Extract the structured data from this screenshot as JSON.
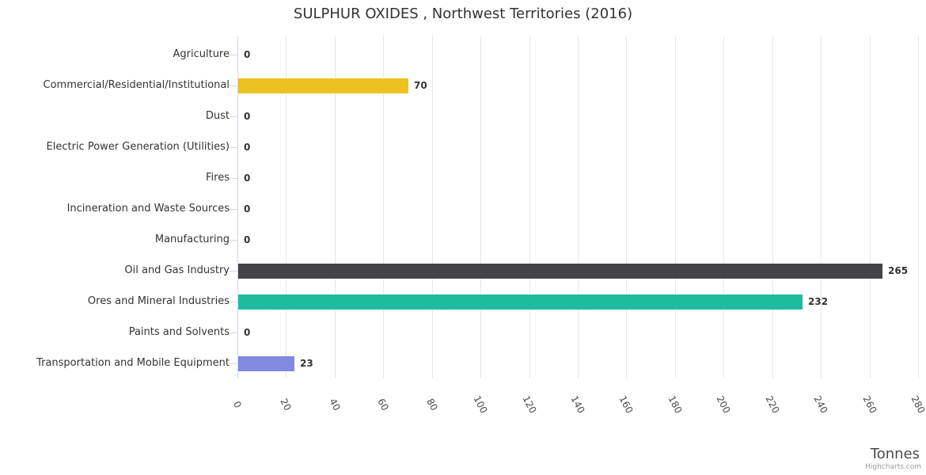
{
  "chart": {
    "credit": "Highcharts.com",
    "background_color": "#ffffff",
    "grid_color": "#e6e6e6",
    "axis_color": "#ccd6eb"
  },
  "chart_data": {
    "type": "bar",
    "orientation": "horizontal",
    "title": "SULPHUR OXIDES , Northwest Territories (2016)",
    "categories": [
      "Agriculture",
      "Commercial/Residential/Institutional",
      "Dust",
      "Electric Power Generation (Utilities)",
      "Fires",
      "Incineration and Waste Sources",
      "Manufacturing",
      "Oil and Gas Industry",
      "Ores and Mineral Industries",
      "Paints and Solvents",
      "Transportation and Mobile Equipment"
    ],
    "values": [
      0,
      70,
      0,
      0,
      0,
      0,
      0,
      265,
      232,
      0,
      23
    ],
    "bar_colors": {
      "1": "#edc220",
      "7": "#434348",
      "8": "#1ebc9c",
      "10": "#8289e0"
    },
    "xlabel": "Tonnes",
    "xlim": [
      0,
      280
    ],
    "xticks": [
      0,
      20,
      40,
      60,
      80,
      100,
      120,
      140,
      160,
      180,
      200,
      220,
      240,
      260,
      280
    ],
    "xtick_rotation_deg": 62,
    "grid": true,
    "data_labels": true,
    "legend": false
  }
}
